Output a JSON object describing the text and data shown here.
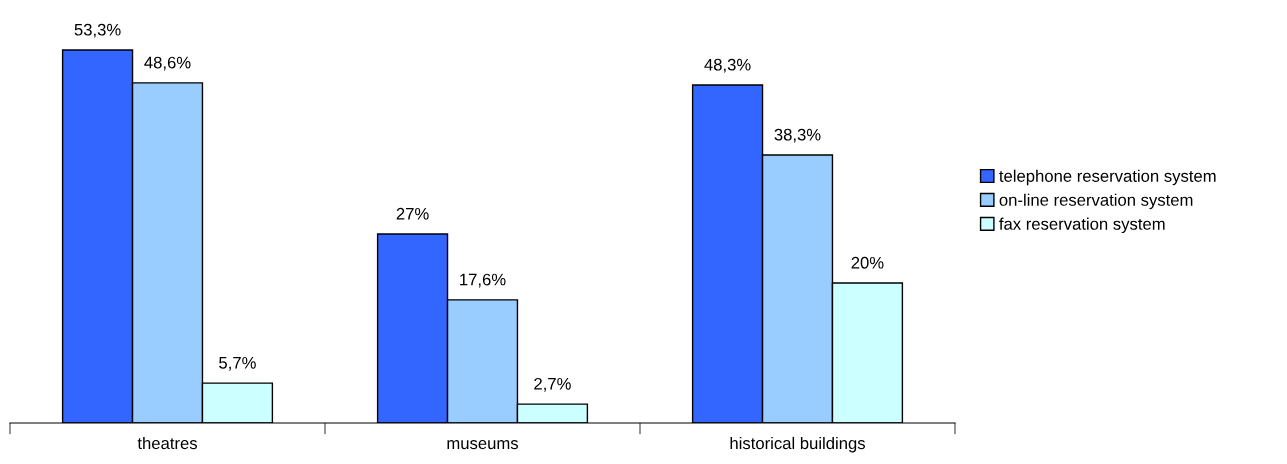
{
  "chart_data": {
    "type": "bar",
    "categories": [
      "theatres",
      "museums",
      "historical buildings"
    ],
    "series": [
      {
        "name": "telephone reservation system",
        "color": "#3366ff",
        "values": [
          53.3,
          27,
          48.3
        ],
        "value_labels": [
          "53,3%",
          "27%",
          "48,3%"
        ]
      },
      {
        "name": "on-line reservation system",
        "color": "#99ccff",
        "values": [
          48.6,
          17.6,
          38.3
        ],
        "value_labels": [
          "48,6%",
          "17,6%",
          "38,3%"
        ]
      },
      {
        "name": "fax reservation system",
        "color": "#ccffff",
        "values": [
          5.7,
          2.7,
          20
        ],
        "value_labels": [
          "5,7%",
          "2,7%",
          "20%"
        ]
      }
    ],
    "legend": "right",
    "grid": false
  }
}
